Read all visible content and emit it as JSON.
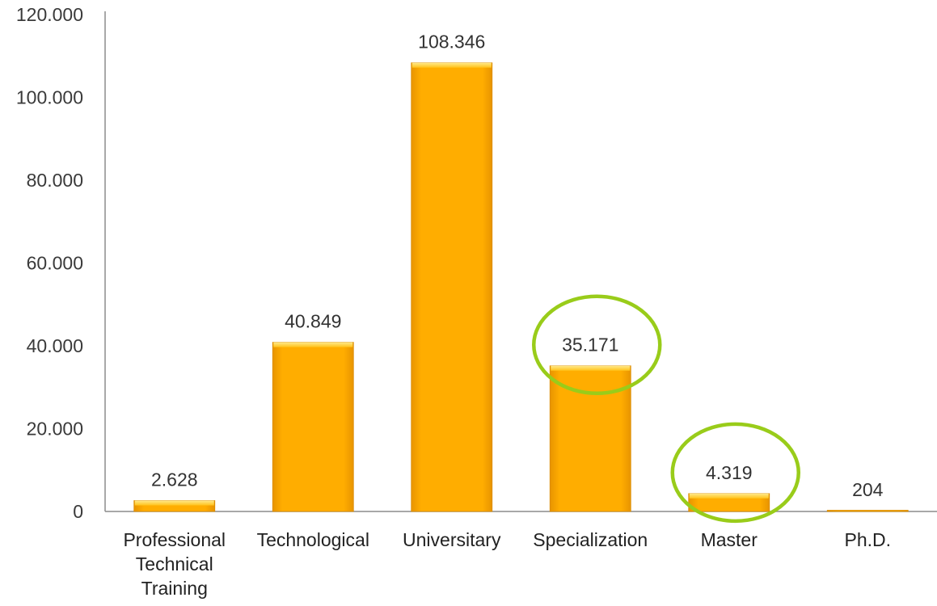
{
  "chart_data": {
    "type": "bar",
    "categories": [
      [
        "Professional",
        "Technical",
        "Training"
      ],
      [
        "Technological"
      ],
      [
        "Universitary"
      ],
      [
        "Specialization"
      ],
      [
        "Master"
      ],
      [
        "Ph.D."
      ]
    ],
    "values": [
      2628,
      40849,
      108346,
      35171,
      4319,
      204
    ],
    "data_labels": [
      "2.628",
      "40.849",
      "108.346",
      "35.171",
      "4.319",
      "204"
    ],
    "ylim": [
      0,
      120000
    ],
    "yticks": [
      0,
      20000,
      40000,
      60000,
      80000,
      100000,
      120000
    ],
    "ytick_labels": [
      "0",
      "20.000",
      "40.000",
      "60.000",
      "80.000",
      "100.000",
      "120.000"
    ],
    "highlighted_categories": [
      3,
      4
    ],
    "grid": false,
    "legend": "none",
    "colors": {
      "bar": "#ffae00",
      "bar_top": "#ffe566",
      "highlight_ring": "#99cc1a",
      "axis": "#8c8c8c"
    }
  }
}
